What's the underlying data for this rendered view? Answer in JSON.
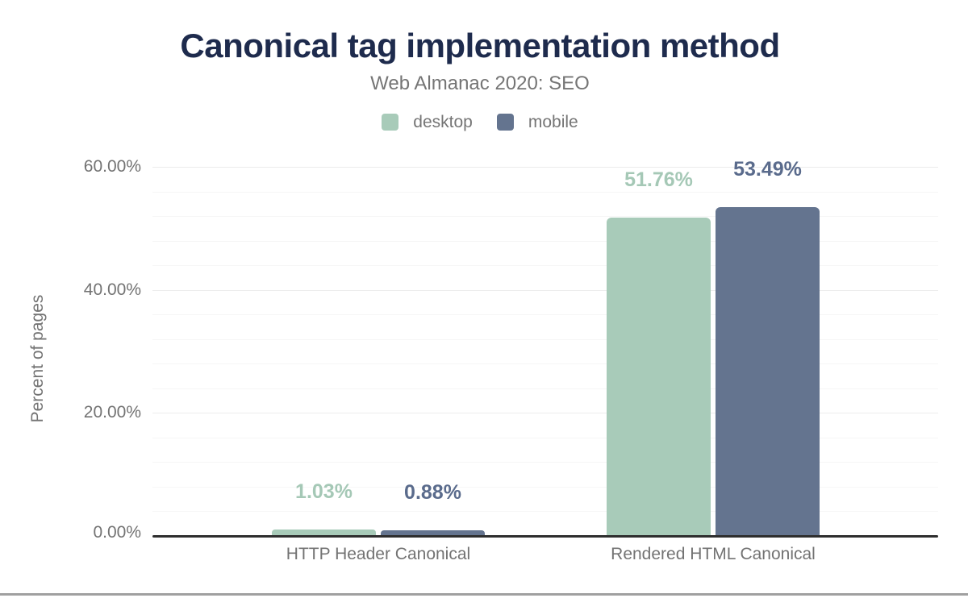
{
  "chart_data": {
    "type": "bar",
    "title": "Canonical tag implementation method",
    "subtitle": "Web Almanac 2020: SEO",
    "categories": [
      "HTTP Header Canonical",
      "Rendered HTML Canonical"
    ],
    "series": [
      {
        "name": "desktop",
        "color": "#a8cbb9",
        "label_color": "#a5c8b6",
        "values": [
          1.03,
          51.76
        ],
        "value_labels": [
          "1.03%",
          "51.76%"
        ]
      },
      {
        "name": "mobile",
        "color": "#64748f",
        "label_color": "#5a6b8c",
        "values": [
          0.88,
          53.49
        ],
        "value_labels": [
          "0.88%",
          "53.49%"
        ]
      }
    ],
    "ylabel": "Percent of pages",
    "xlabel": "",
    "ylim": [
      0,
      60
    ],
    "yticks": [
      {
        "value": 0,
        "label": "0.00%"
      },
      {
        "value": 20,
        "label": "20.00%"
      },
      {
        "value": 40,
        "label": "40.00%"
      },
      {
        "value": 60,
        "label": "60.00%"
      }
    ],
    "grid": {
      "minor_step_pct": 4,
      "major_step_pct": 20,
      "enabled": true
    },
    "legend_position": "top"
  },
  "colors": {
    "title": "#1e2b4d",
    "subtitle_text": "#757575",
    "axis_text": "#737373",
    "legend_text": "#757575",
    "gridline_minor": "#f6f6f6",
    "gridline_major": "#ececec",
    "axis_line": "#2e2e2e",
    "bottom_rule": "#a0a0a0",
    "background": "#ffffff"
  }
}
